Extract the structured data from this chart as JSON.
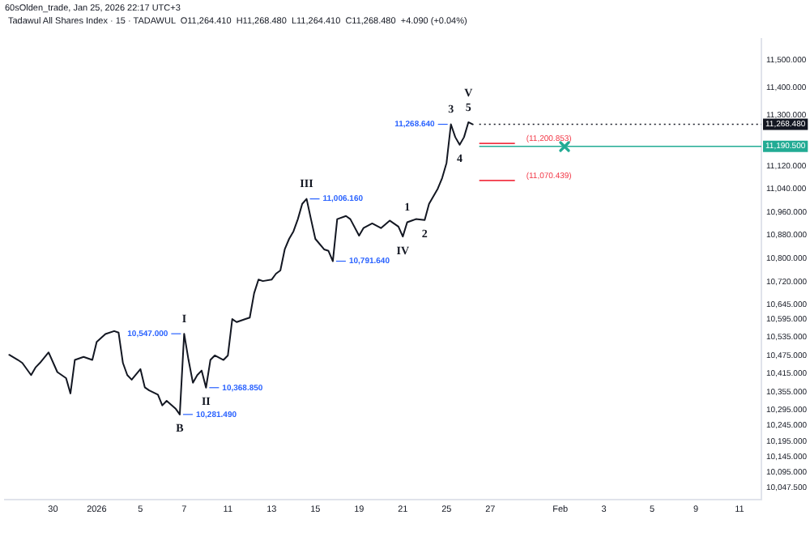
{
  "chart_data": {
    "type": "line",
    "title": "Tadawul All Shares Index · 15 · TADAWUL  O11,264.410  H11,268.480  L11,264.410  C11,268.480  +4.090 (+0.04%)",
    "categories": [
      null,
      null,
      null,
      null,
      null,
      null,
      null,
      null,
      null,
      null,
      null,
      "30",
      null,
      null,
      null,
      null,
      null,
      null,
      null,
      null,
      null,
      "2026",
      null,
      null,
      null,
      null,
      null,
      null,
      null,
      null,
      null,
      "5",
      null,
      null,
      null,
      null,
      null,
      null,
      null,
      null,
      null,
      "7",
      null,
      null,
      null,
      null,
      null,
      null,
      null,
      null,
      null,
      "11",
      null,
      null,
      null,
      null,
      null,
      null,
      null,
      null,
      null,
      "13",
      null,
      null,
      null,
      null,
      null,
      null,
      null,
      null,
      null,
      "15",
      null,
      null,
      null,
      null,
      null,
      null,
      null,
      null,
      null,
      "19",
      null,
      null,
      null,
      null,
      null,
      null,
      null,
      null,
      null,
      "21",
      null,
      null,
      null,
      null,
      null,
      null,
      null,
      null,
      null,
      "25",
      null,
      null,
      null,
      null,
      null,
      null,
      null,
      null,
      null,
      "27",
      null,
      null,
      null,
      null,
      null,
      null,
      null,
      null,
      null,
      null,
      null,
      null,
      null,
      null,
      null,
      "Feb",
      null,
      null,
      null,
      null,
      null,
      null,
      null,
      null,
      null,
      "3",
      null,
      null,
      null,
      null,
      null,
      null,
      null,
      null,
      null,
      null,
      "5",
      null,
      null,
      null,
      null,
      null,
      null,
      null,
      null,
      null,
      "9",
      null,
      null,
      null,
      null,
      null,
      null,
      null,
      null,
      null,
      "11",
      null,
      null,
      null,
      null,
      null
    ],
    "series": [
      {
        "color": "#131722",
        "values": [
          null,
          10477,
          null,
          10460,
          10450,
          null,
          10410,
          10435,
          10450,
          null,
          10485,
          null,
          10420,
          null,
          10400,
          10350,
          10460,
          null,
          10470,
          null,
          10460,
          10520,
          null,
          10546,
          null,
          10556,
          10551,
          10450,
          10410,
          10395,
          null,
          10430,
          10370,
          10360,
          null,
          10346,
          10311,
          10326,
          null,
          10301,
          10281.49,
          10547,
          10460,
          10385,
          10410,
          10425,
          10368.85,
          10460,
          10475,
          null,
          10460,
          10475,
          10596,
          10586,
          null,
          10596,
          10601,
          10683,
          10729,
          10724,
          null,
          10729,
          10749,
          10760,
          10832,
          10868,
          10894,
          10936,
          10989,
          11006.16,
          10936,
          10868,
          null,
          10832,
          10827,
          10791.64,
          10936,
          null,
          10947,
          10936,
          null,
          10879,
          10905,
          null,
          10921,
          null,
          10905,
          null,
          10931,
          null,
          10910,
          10876,
          10925,
          null,
          10936,
          null,
          10933,
          10989,
          null,
          11042,
          11079,
          11132,
          11268.64,
          11223,
          11196,
          11223,
          11276,
          11268.48,
          null,
          null,
          null,
          null,
          null,
          null,
          null,
          null,
          null,
          null,
          null,
          null,
          null,
          null,
          null,
          null,
          null,
          null,
          null,
          null,
          null,
          null,
          null,
          null,
          null,
          null,
          null,
          null,
          null,
          null,
          null,
          null,
          null,
          null,
          null,
          null,
          null,
          null,
          null,
          null,
          null,
          null,
          null,
          null,
          null,
          null,
          null,
          null,
          null,
          null,
          null,
          null,
          null,
          null,
          null,
          null,
          null,
          null,
          null,
          null,
          null,
          null,
          null,
          null,
          null,
          null
        ],
        "value_labels": [
          null,
          null,
          null,
          null,
          null,
          null,
          null,
          null,
          null,
          null,
          null,
          null,
          null,
          null,
          null,
          null,
          null,
          null,
          null,
          null,
          null,
          null,
          null,
          null,
          null,
          null,
          null,
          null,
          null,
          null,
          null,
          null,
          null,
          null,
          null,
          null,
          null,
          null,
          null,
          null,
          "10,281.490",
          "10,547.000",
          null,
          null,
          null,
          null,
          "10,368.850",
          null,
          null,
          null,
          null,
          null,
          null,
          null,
          null,
          null,
          null,
          null,
          null,
          null,
          null,
          null,
          null,
          null,
          null,
          null,
          null,
          null,
          null,
          "11,006.160",
          null,
          null,
          null,
          null,
          null,
          "10,791.640",
          null,
          null,
          null,
          null,
          null,
          null,
          null,
          null,
          null,
          null,
          null,
          null,
          null,
          null,
          null,
          null,
          null,
          null,
          null,
          null,
          null,
          null,
          null,
          null,
          null,
          null,
          "11,268.640",
          null,
          null,
          null,
          null,
          null,
          null,
          null,
          null,
          null,
          null,
          null,
          null,
          null,
          null,
          null,
          null,
          null,
          null,
          null,
          null,
          null,
          null,
          null,
          null,
          null,
          null,
          null,
          null,
          null,
          null,
          null,
          null,
          null,
          null,
          null,
          null,
          null,
          null,
          null,
          null,
          null,
          null,
          null,
          null,
          null,
          null,
          null,
          null,
          null,
          null,
          null,
          null,
          null,
          null,
          null,
          null,
          null,
          null,
          null,
          null,
          null,
          null,
          null,
          null,
          null,
          null,
          null,
          null,
          null,
          null,
          null
        ]
      }
    ],
    "log": "y",
    "ylim": [
      10009,
      11577
    ],
    "yticks": [
      {
        "value": 11500,
        "label": "11,500.000"
      },
      {
        "value": 11400,
        "label": "11,400.000"
      },
      {
        "value": 11300,
        "label": "11,300.000"
      },
      {
        "value": 11120,
        "label": "11,120.000"
      },
      {
        "value": 11040,
        "label": "11,040.000"
      },
      {
        "value": 10960,
        "label": "10,960.000"
      },
      {
        "value": 10880,
        "label": "10,880.000"
      },
      {
        "value": 10800,
        "label": "10,800.000"
      },
      {
        "value": 10720,
        "label": "10,720.000"
      },
      {
        "value": 10645,
        "label": "10,645.000"
      },
      {
        "value": 10595,
        "label": "10,595.000"
      },
      {
        "value": 10535,
        "label": "10,535.000"
      },
      {
        "value": 10475,
        "label": "10,475.000"
      },
      {
        "value": 10415,
        "label": "10,415.000"
      },
      {
        "value": 10355,
        "label": "10,355.000"
      },
      {
        "value": 10295,
        "label": "10,295.000"
      },
      {
        "value": 10245,
        "label": "10,245.000"
      },
      {
        "value": 10195,
        "label": "10,195.000"
      },
      {
        "value": 10145,
        "label": "10,145.000"
      },
      {
        "value": 10095,
        "label": "10,095.000"
      },
      {
        "value": 10047.5,
        "label": "10,047.500"
      }
    ],
    "ref_lines": [
      {
        "axis": "y",
        "value": 11268.48,
        "label": "11,268.480",
        "color": "#131722",
        "line_style": "dotted"
      },
      {
        "axis": "y",
        "value": 11190.5,
        "label": "11,190.500",
        "color": "#22ab94"
      },
      {
        "axis": "y",
        "value": 11200.853,
        "label": "(11,200.853)",
        "color": "#f23645"
      },
      {
        "axis": "y",
        "value": 11070.439,
        "label": "(11,070.439)",
        "color": "#f23645"
      }
    ],
    "annotations": [
      "60sOlden_trade, Jan 25, 2026 22:17 UTC+3",
      {
        "text": "I",
        "y": 10547
      },
      {
        "text": "II",
        "y": 10368.85
      },
      {
        "text": "III",
        "y": 11006.16
      },
      {
        "text": "IV",
        "y": 10876
      },
      {
        "text": "5",
        "y": 11276
      },
      {
        "text": "V",
        "y": 11276
      },
      {
        "text": "B",
        "y": 10281.49
      },
      {
        "text": "1",
        "y": 10925
      },
      {
        "text": "2",
        "y": 10933
      },
      {
        "text": "3",
        "y": 11268.64
      },
      {
        "text": "4",
        "y": 11196
      }
    ]
  }
}
